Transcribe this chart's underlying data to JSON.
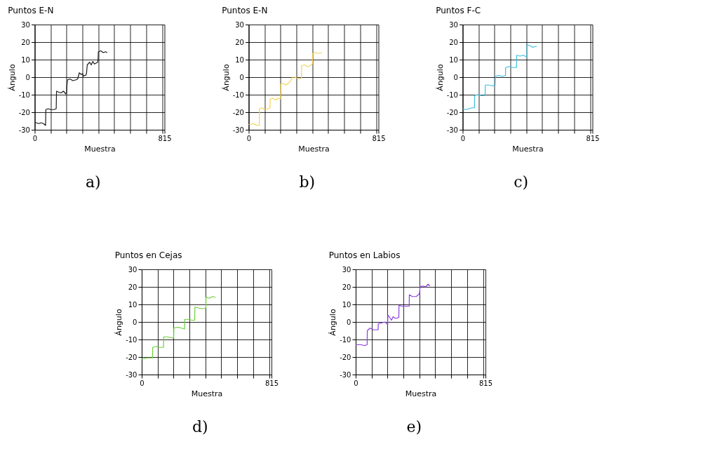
{
  "chart_data": [
    {
      "type": "line",
      "title": "Puntos E-N",
      "xlabel": "Muestra",
      "ylabel": "Ángulo",
      "annotations": [
        "a)"
      ],
      "grid": true,
      "marker": "none",
      "line_style": "solid",
      "xlim": [
        0,
        815
      ],
      "xticks": [
        0,
        {
          "value": 100,
          "label": null
        },
        {
          "value": 200,
          "label": null
        },
        {
          "value": 300,
          "label": null
        },
        {
          "value": 400,
          "label": null
        },
        {
          "value": 500,
          "label": null
        },
        {
          "value": 600,
          "label": null
        },
        {
          "value": 700,
          "label": null
        },
        {
          "value": 800,
          "label": null
        },
        815
      ],
      "ylim": [
        -30,
        30
      ],
      "yticks": [
        -30,
        -20,
        -10,
        0,
        10,
        20,
        30
      ],
      "series": [
        {
          "color": "#1a1a1a",
          "x": [
            0,
            10,
            25,
            40,
            55,
            68,
            70,
            85,
            100,
            120,
            135,
            137,
            150,
            165,
            180,
            195,
            200,
            202,
            206,
            220,
            240,
            260,
            270,
            280,
            292,
            300,
            305,
            312,
            320,
            325,
            330,
            345,
            355,
            365,
            375,
            395,
            398,
            400,
            415,
            430,
            445,
            455
          ],
          "values": [
            -26,
            -26,
            -26.5,
            -26,
            -26.5,
            -27.5,
            -18.5,
            -18,
            -18.5,
            -18.5,
            -18,
            -8,
            -8.5,
            -9,
            -8,
            -9.5,
            -9,
            -5,
            -1.5,
            -1,
            -2,
            -1.5,
            -1,
            2.5,
            1.5,
            2,
            0.5,
            1,
            1,
            2,
            7,
            8.5,
            7,
            9,
            7.5,
            8.5,
            10,
            14.5,
            15,
            14,
            14.5,
            14
          ]
        }
      ]
    },
    {
      "type": "line",
      "title": "Puntos E-N",
      "xlabel": "Muestra",
      "ylabel": "Ángulo",
      "annotations": [
        "b)"
      ],
      "grid": true,
      "marker": "none",
      "line_style": "solid",
      "xlim": [
        0,
        815
      ],
      "xticks": [
        0,
        {
          "value": 100,
          "label": null
        },
        {
          "value": 200,
          "label": null
        },
        {
          "value": 300,
          "label": null
        },
        {
          "value": 400,
          "label": null
        },
        {
          "value": 500,
          "label": null
        },
        {
          "value": 600,
          "label": null
        },
        {
          "value": 700,
          "label": null
        },
        {
          "value": 800,
          "label": null
        },
        815
      ],
      "ylim": [
        -30,
        30
      ],
      "yticks": [
        -30,
        -20,
        -10,
        0,
        10,
        20,
        30
      ],
      "series": [
        {
          "color": "#f2d35a",
          "x": [
            0,
            15,
            30,
            50,
            67,
            68,
            85,
            100,
            120,
            134,
            135,
            150,
            170,
            185,
            199,
            200,
            215,
            235,
            255,
            272,
            273,
            290,
            305,
            320,
            331,
            332,
            350,
            370,
            385,
            400,
            401,
            420,
            440,
            460
          ],
          "values": [
            -27,
            -27,
            -26.5,
            -27.5,
            -27.5,
            -18,
            -17.5,
            -18.5,
            -18,
            -17.5,
            -12.5,
            -12,
            -13,
            -12,
            -12.5,
            -4,
            -3.5,
            -4.5,
            -3,
            -1,
            0,
            0,
            -0.5,
            -1,
            -0.5,
            6.5,
            7,
            6,
            6.5,
            7.5,
            13.5,
            14,
            13.5,
            14
          ]
        }
      ]
    },
    {
      "type": "line",
      "title": "Puntos F-C",
      "xlabel": "Muestra",
      "ylabel": "Ángulo",
      "annotations": [
        "c)"
      ],
      "grid": true,
      "marker": "none",
      "line_style": "solid",
      "xlim": [
        0,
        815
      ],
      "xticks": [
        0,
        {
          "value": 100,
          "label": null
        },
        {
          "value": 200,
          "label": null
        },
        {
          "value": 300,
          "label": null
        },
        {
          "value": 400,
          "label": null
        },
        {
          "value": 500,
          "label": null
        },
        {
          "value": 600,
          "label": null
        },
        {
          "value": 700,
          "label": null
        },
        {
          "value": 800,
          "label": null
        },
        815
      ],
      "ylim": [
        -30,
        30
      ],
      "yticks": [
        -30,
        -20,
        -10,
        0,
        10,
        20,
        30
      ],
      "series": [
        {
          "color": "#3cbfe0",
          "x": [
            0,
            20,
            40,
            60,
            74,
            75,
            95,
            115,
            141,
            142,
            165,
            185,
            204,
            205,
            225,
            250,
            269,
            270,
            290,
            315,
            338,
            339,
            360,
            380,
            403,
            404,
            420,
            440,
            455,
            466
          ],
          "values": [
            -18,
            -18.5,
            -18,
            -17.5,
            -17.5,
            -10.5,
            -10,
            -10.5,
            -10.5,
            -4.5,
            -4.5,
            -5,
            -4.5,
            0.5,
            1,
            0.5,
            1,
            5.5,
            6,
            5.5,
            5.5,
            12.5,
            12,
            12.5,
            11.5,
            18.5,
            18,
            17,
            17.5,
            17.5
          ]
        }
      ]
    },
    {
      "type": "line",
      "title": "Puntos en Cejas",
      "xlabel": "Muestra",
      "ylabel": "Ángulo",
      "annotations": [
        "d)"
      ],
      "grid": true,
      "marker": "none",
      "line_style": "solid",
      "xlim": [
        0,
        815
      ],
      "xticks": [
        0,
        {
          "value": 100,
          "label": null
        },
        {
          "value": 200,
          "label": null
        },
        {
          "value": 300,
          "label": null
        },
        {
          "value": 400,
          "label": null
        },
        {
          "value": 500,
          "label": null
        },
        {
          "value": 600,
          "label": null
        },
        {
          "value": 700,
          "label": null
        },
        {
          "value": 800,
          "label": null
        },
        815
      ],
      "ylim": [
        -30,
        30
      ],
      "yticks": [
        -30,
        -20,
        -10,
        0,
        10,
        20,
        30
      ],
      "series": [
        {
          "color": "#6ccf3a",
          "x": [
            0,
            15,
            30,
            50,
            68,
            69,
            90,
            115,
            137,
            138,
            160,
            185,
            201,
            202,
            225,
            250,
            269,
            270,
            290,
            315,
            333,
            334,
            355,
            380,
            403,
            404,
            425,
            445,
            464
          ],
          "values": [
            -21,
            -21,
            -20.5,
            -20.5,
            -20.5,
            -14.5,
            -14,
            -14.5,
            -14.5,
            -8.5,
            -8.5,
            -9,
            -9,
            -3.5,
            -3,
            -3.5,
            -4,
            1.5,
            1.5,
            1,
            1,
            8.5,
            8,
            7.5,
            8,
            14,
            13.5,
            14.5,
            14
          ]
        }
      ]
    },
    {
      "type": "line",
      "title": "Puntos en Labios",
      "xlabel": "Muestra",
      "ylabel": "Ángulo",
      "annotations": [
        "e)"
      ],
      "grid": true,
      "marker": "none",
      "line_style": "solid",
      "xlim": [
        0,
        815
      ],
      "xticks": [
        0,
        {
          "value": 100,
          "label": null
        },
        {
          "value": 200,
          "label": null
        },
        {
          "value": 300,
          "label": null
        },
        {
          "value": 400,
          "label": null
        },
        {
          "value": 500,
          "label": null
        },
        {
          "value": 600,
          "label": null
        },
        {
          "value": 700,
          "label": null
        },
        {
          "value": 800,
          "label": null
        },
        815
      ],
      "ylim": [
        -30,
        30
      ],
      "yticks": [
        -30,
        -20,
        -10,
        0,
        10,
        20,
        30
      ],
      "series": [
        {
          "color": "#8a3fe0",
          "x": [
            0,
            15,
            35,
            55,
            72,
            73,
            90,
            110,
            125,
            141,
            142,
            165,
            185,
            201,
            202,
            210,
            225,
            235,
            250,
            271,
            272,
            290,
            315,
            336,
            337,
            355,
            380,
            400,
            405,
            420,
            440,
            455,
            466
          ],
          "values": [
            -13,
            -13,
            -13,
            -13.5,
            -13,
            -5,
            -3.5,
            -4.5,
            -4.5,
            -4.5,
            -1,
            -0.5,
            0,
            -1.5,
            4,
            3,
            1,
            3,
            2,
            2.5,
            9.5,
            9,
            9,
            9,
            15.5,
            14.5,
            14.5,
            16,
            20,
            20.5,
            20,
            21.5,
            20.5
          ]
        }
      ]
    }
  ]
}
